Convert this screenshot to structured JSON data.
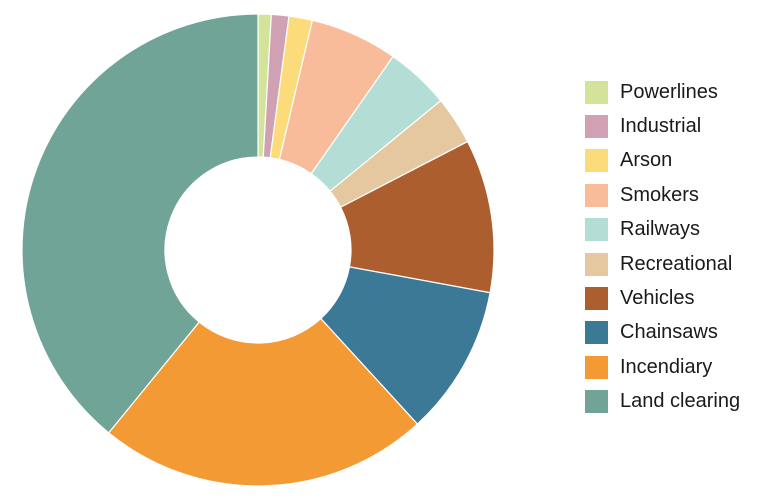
{
  "chart_data": {
    "type": "pie",
    "variant": "donut",
    "title": "",
    "legend_position": "right",
    "categories": [
      "Powerlines",
      "Industrial",
      "Arson",
      "Smokers",
      "Railways",
      "Recreational",
      "Vehicles",
      "Chainsaws",
      "Incendiary",
      "Land clearing"
    ],
    "values": [
      0.9,
      1.2,
      1.6,
      6.0,
      4.4,
      3.3,
      10.5,
      10.3,
      22.7,
      39.1
    ],
    "unit": "%",
    "colors": [
      "#d4e39a",
      "#cfa1b3",
      "#fcdb7a",
      "#f9bc9b",
      "#b4ded5",
      "#e6c8a0",
      "#ad5e2f",
      "#3b7997",
      "#f49a34",
      "#6fa496"
    ]
  }
}
